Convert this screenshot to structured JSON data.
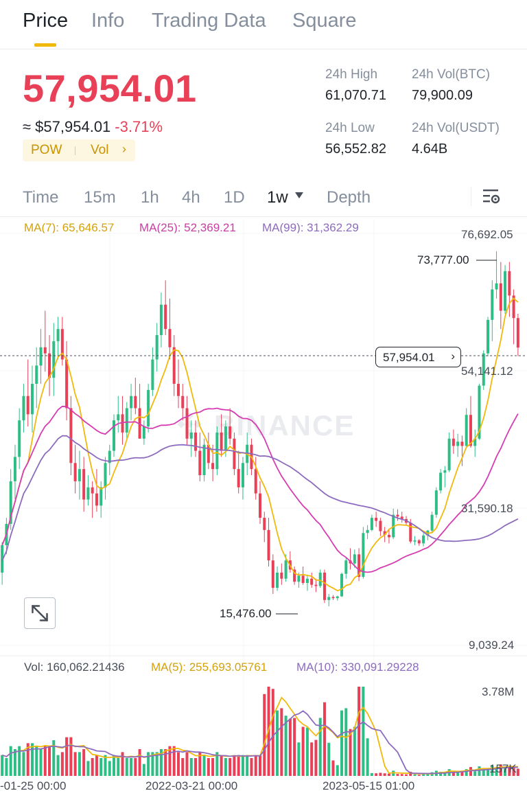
{
  "tabs": [
    {
      "label": "Price",
      "active": true
    },
    {
      "label": "Info",
      "active": false
    },
    {
      "label": "Trading Data",
      "active": false
    },
    {
      "label": "Square",
      "active": false
    }
  ],
  "ticker": {
    "last_price": "57,954.01",
    "usd_approx": "≈ $57,954.01",
    "change_pct": "-3.71%",
    "tag_algo": "POW",
    "tag_vol": "Vol",
    "high_24h_label": "24h High",
    "high_24h": "61,070.71",
    "low_24h_label": "24h Low",
    "low_24h": "56,552.82",
    "vol_btc_label": "24h Vol(BTC)",
    "vol_btc": "79,900.09",
    "vol_usdt_label": "24h Vol(USDT)",
    "vol_usdt": "4.64B"
  },
  "intervals": {
    "items": [
      "Time",
      "15m",
      "1h",
      "4h",
      "1D",
      "1w",
      "Depth"
    ],
    "active": "1w"
  },
  "main_chart": {
    "ma7_label": "MA(7): 65,646.57",
    "ma25_label": "MA(25): 52,369.21",
    "ma99_label": "MA(99): 31,362.29",
    "axis_ticks": [
      "76,692.05",
      "54,141.12",
      "31,590.18",
      "9,039.24"
    ],
    "current_price_tag": "57,954.01",
    "high_marker": "73,777.00",
    "low_marker": "15,476.00",
    "watermark": "BINANCE"
  },
  "volume_chart": {
    "vol_label": "Vol: 160,062.21436",
    "ma5_label": "MA(5): 255,693.05761",
    "ma10_label": "MA(10): 330,091.29228",
    "axis_ticks": [
      "3.78M",
      "157K"
    ]
  },
  "time_axis": [
    "-01-25 00:00",
    "2022-03-21 00:00",
    "2023-05-15 01:00"
  ],
  "colors": {
    "up": "#2ebd85",
    "down": "#e84057",
    "ma7": "#f0b90b",
    "ma25": "#d63cb1",
    "ma99": "#8c6bbf",
    "accent": "#f0b90b"
  },
  "chart_data": {
    "type": "candlestick",
    "interval": "1w",
    "y_range": [
      9039.24,
      76692.05
    ],
    "series_ma": [
      {
        "name": "MA(7)",
        "color": "#f0b90b"
      },
      {
        "name": "MA(25)",
        "color": "#d63cb1"
      },
      {
        "name": "MA(99)",
        "color": "#8c6bbf"
      }
    ],
    "candles": [
      [
        21000,
        26000,
        19000,
        25500
      ],
      [
        25500,
        30000,
        24000,
        29000
      ],
      [
        29000,
        38000,
        28000,
        36000
      ],
      [
        36000,
        42000,
        33000,
        40000
      ],
      [
        40000,
        48000,
        38000,
        46000
      ],
      [
        46000,
        52000,
        44000,
        50000
      ],
      [
        50000,
        56000,
        45000,
        47000
      ],
      [
        47000,
        55000,
        44000,
        52000
      ],
      [
        52000,
        58000,
        48000,
        55000
      ],
      [
        55000,
        61000,
        52000,
        58000
      ],
      [
        58000,
        64000,
        54000,
        57000
      ],
      [
        57000,
        60000,
        50000,
        53000
      ],
      [
        53000,
        62000,
        50000,
        59000
      ],
      [
        59000,
        63000,
        56000,
        61000
      ],
      [
        61000,
        63000,
        55000,
        56000
      ],
      [
        56000,
        59000,
        46000,
        48000
      ],
      [
        48000,
        50000,
        37000,
        39000
      ],
      [
        39000,
        42000,
        34000,
        36000
      ],
      [
        36000,
        41000,
        33000,
        38000
      ],
      [
        38000,
        40000,
        31000,
        33000
      ],
      [
        33000,
        37000,
        32000,
        35000
      ],
      [
        35000,
        36000,
        30000,
        34000
      ],
      [
        34000,
        38000,
        31000,
        32000
      ],
      [
        32000,
        36000,
        30000,
        35000
      ],
      [
        35000,
        40000,
        33000,
        39000
      ],
      [
        39000,
        42000,
        37000,
        41000
      ],
      [
        41000,
        47000,
        40000,
        46000
      ],
      [
        46000,
        50000,
        44000,
        47000
      ],
      [
        47000,
        50000,
        42000,
        44000
      ],
      [
        44000,
        49000,
        43000,
        48000
      ],
      [
        48000,
        52000,
        46000,
        50000
      ],
      [
        50000,
        53000,
        47000,
        48000
      ],
      [
        48000,
        52000,
        43000,
        43000
      ],
      [
        43000,
        46000,
        42000,
        45000
      ],
      [
        45000,
        52000,
        44000,
        51000
      ],
      [
        51000,
        58000,
        50000,
        56000
      ],
      [
        56000,
        62000,
        54000,
        60000
      ],
      [
        60000,
        67000,
        58000,
        65000
      ],
      [
        65000,
        69000,
        60000,
        61000
      ],
      [
        61000,
        66000,
        56000,
        58000
      ],
      [
        58000,
        60000,
        50000,
        52000
      ],
      [
        52000,
        56000,
        48000,
        50000
      ],
      [
        50000,
        52000,
        46000,
        48000
      ],
      [
        48000,
        50000,
        42000,
        43000
      ],
      [
        43000,
        46000,
        40000,
        44000
      ],
      [
        44000,
        46000,
        40000,
        41000
      ],
      [
        41000,
        44000,
        36000,
        37000
      ],
      [
        37000,
        43000,
        36000,
        42000
      ],
      [
        42000,
        44000,
        38000,
        39000
      ],
      [
        39000,
        42000,
        36000,
        38000
      ],
      [
        38000,
        45000,
        37000,
        44000
      ],
      [
        44000,
        47000,
        40000,
        41000
      ],
      [
        41000,
        46000,
        40000,
        45000
      ],
      [
        45000,
        48000,
        42000,
        43000
      ],
      [
        43000,
        44000,
        37000,
        38000
      ],
      [
        38000,
        41000,
        34000,
        35000
      ],
      [
        35000,
        40000,
        33000,
        39000
      ],
      [
        39000,
        44000,
        37000,
        42000
      ],
      [
        42000,
        43000,
        37000,
        38000
      ],
      [
        38000,
        40000,
        33000,
        34000
      ],
      [
        34000,
        36000,
        29000,
        30000
      ],
      [
        30000,
        31000,
        26000,
        28000
      ],
      [
        28000,
        30000,
        22000,
        23000
      ],
      [
        23000,
        24000,
        17500,
        18500
      ],
      [
        18500,
        22000,
        18000,
        21000
      ],
      [
        21000,
        22500,
        19000,
        20000
      ],
      [
        20000,
        24000,
        19500,
        23000
      ],
      [
        23000,
        24500,
        21000,
        21500
      ],
      [
        21500,
        22000,
        19000,
        19500
      ],
      [
        19500,
        21000,
        18500,
        20500
      ],
      [
        20500,
        22000,
        19000,
        19300
      ],
      [
        19300,
        20500,
        18000,
        20000
      ],
      [
        20000,
        21000,
        18500,
        19000
      ],
      [
        19000,
        20000,
        17800,
        18800
      ],
      [
        18800,
        21500,
        18500,
        21000
      ],
      [
        21000,
        21500,
        16000,
        16500
      ],
      [
        16500,
        17500,
        15476,
        17000
      ],
      [
        17000,
        17300,
        16500,
        16800
      ],
      [
        16800,
        17200,
        16400,
        17100
      ],
      [
        17100,
        21000,
        17000,
        20800
      ],
      [
        20800,
        23500,
        20000,
        23000
      ],
      [
        23000,
        25000,
        21500,
        22500
      ],
      [
        22500,
        24800,
        21800,
        24000
      ],
      [
        24000,
        25000,
        19600,
        20300
      ],
      [
        20300,
        28500,
        20000,
        27500
      ],
      [
        27500,
        28800,
        26500,
        28000
      ],
      [
        28000,
        30500,
        27800,
        30000
      ],
      [
        30000,
        31000,
        28500,
        29500
      ],
      [
        29500,
        30000,
        27000,
        27800
      ],
      [
        27800,
        28500,
        26000,
        27200
      ],
      [
        27200,
        28000,
        25800,
        26800
      ],
      [
        26800,
        31500,
        26500,
        30500
      ],
      [
        30500,
        31400,
        29500,
        30200
      ],
      [
        30200,
        31000,
        29200,
        29800
      ],
      [
        29800,
        30300,
        28800,
        29200
      ],
      [
        29200,
        29800,
        25800,
        26100
      ],
      [
        26100,
        27000,
        25500,
        26300
      ],
      [
        26300,
        26500,
        25400,
        25800
      ],
      [
        25800,
        27500,
        25300,
        27100
      ],
      [
        27100,
        28000,
        26300,
        27900
      ],
      [
        27900,
        31000,
        27500,
        30500
      ],
      [
        30500,
        35000,
        30000,
        34500
      ],
      [
        34500,
        38000,
        34000,
        37400
      ],
      [
        37400,
        38500,
        35000,
        37800
      ],
      [
        37800,
        44000,
        37500,
        43000
      ],
      [
        43000,
        44500,
        40500,
        41800
      ],
      [
        41800,
        43800,
        40000,
        42500
      ],
      [
        42500,
        43500,
        38500,
        41800
      ],
      [
        41800,
        48000,
        41500,
        46900
      ],
      [
        46900,
        50000,
        41500,
        41800
      ],
      [
        41800,
        44500,
        40000,
        43000
      ],
      [
        43000,
        52000,
        42800,
        51700
      ],
      [
        51700,
        57500,
        51000,
        57000
      ],
      [
        57000,
        63000,
        56500,
        62500
      ],
      [
        62500,
        69000,
        59000,
        67500
      ],
      [
        67500,
        73777,
        66000,
        68500
      ],
      [
        68500,
        72000,
        61000,
        64000
      ],
      [
        64000,
        71500,
        63500,
        70500
      ],
      [
        70500,
        72000,
        63000,
        66500
      ],
      [
        66500,
        67500,
        58500,
        62800
      ],
      [
        62800,
        63500,
        56552,
        57954
      ]
    ]
  }
}
